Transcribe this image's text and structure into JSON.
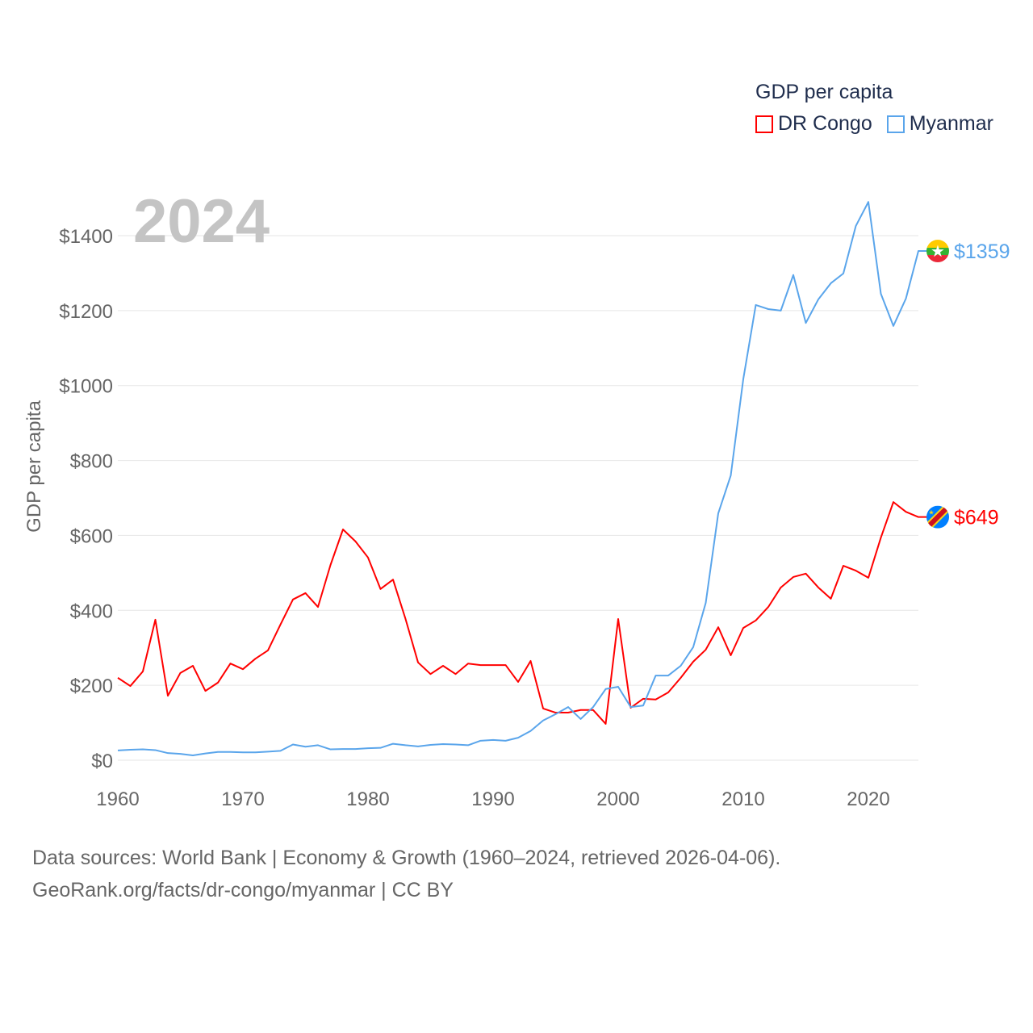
{
  "legend": {
    "title": "GDP per capita"
  },
  "year_label": "2024",
  "footer": {
    "line1": "Data sources: World Bank | Economy & Growth (1960–2024, retrieved 2026-04-06).",
    "line2": "GeoRank.org/facts/dr-congo/myanmar | CC BY"
  },
  "chart_data": {
    "type": "line",
    "title": "GDP per capita",
    "xlabel": "",
    "ylabel": "GDP per capita",
    "xlim": [
      1960,
      2024
    ],
    "ylim": [
      0,
      1500
    ],
    "grid": true,
    "legend_position": "top-right",
    "x_ticks": [
      1960,
      1970,
      1980,
      1990,
      2000,
      2010,
      2020
    ],
    "x_tick_labels": [
      "1960",
      "1970",
      "1980",
      "1990",
      "2000",
      "2010",
      "2020"
    ],
    "y_ticks": [
      0,
      200,
      400,
      600,
      800,
      1000,
      1200,
      1400
    ],
    "y_tick_labels": [
      "$0",
      "$200",
      "$400",
      "$600",
      "$800",
      "$1000",
      "$1200",
      "$1400"
    ],
    "x_start": 1960,
    "series": [
      {
        "name": "DR Congo",
        "color": "#ff0000",
        "end_label": "$649",
        "flag": "dr-congo-flag",
        "values": [
          220,
          198,
          237,
          375,
          172,
          233,
          252,
          185,
          207,
          258,
          243,
          271,
          293,
          362,
          429,
          446,
          409,
          521,
          616,
          584,
          541,
          457,
          482,
          377,
          261,
          230,
          252,
          230,
          258,
          254,
          254,
          254,
          209,
          265,
          138,
          127,
          127,
          134,
          134,
          97,
          377,
          140,
          164,
          162,
          181,
          220,
          263,
          295,
          355,
          280,
          353,
          373,
          409,
          461,
          489,
          498,
          461,
          431,
          519,
          506,
          487,
          594,
          689,
          663,
          649
        ]
      },
      {
        "name": "Myanmar",
        "color": "#5aa5eb",
        "end_label": "$1359",
        "flag": "myanmar-flag",
        "values": [
          26,
          28,
          29,
          27,
          19,
          17,
          13,
          18,
          22,
          22,
          21,
          21,
          23,
          25,
          42,
          36,
          40,
          29,
          30,
          30,
          32,
          33,
          44,
          40,
          37,
          41,
          43,
          42,
          40,
          52,
          54,
          52,
          60,
          78,
          106,
          123,
          142,
          110,
          142,
          190,
          196,
          142,
          146,
          226,
          226,
          252,
          302,
          420,
          659,
          760,
          1017,
          1215,
          1204,
          1200,
          1295,
          1167,
          1230,
          1273,
          1299,
          1426,
          1490,
          1245,
          1159,
          1232,
          1359
        ]
      }
    ]
  }
}
